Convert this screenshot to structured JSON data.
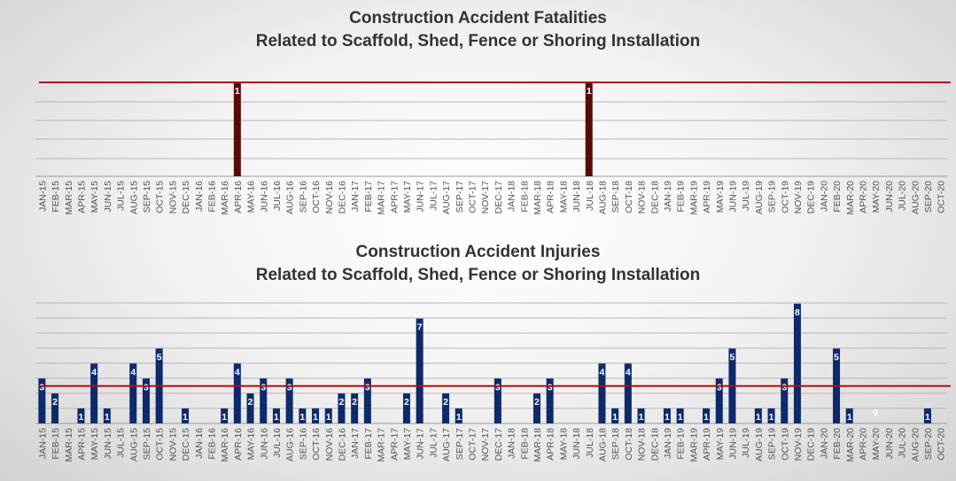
{
  "colors": {
    "fatality_bar": "#5a0a0a",
    "injury_bar": "#0d2a6b",
    "reference_line": "#b01010",
    "gridline": "#b5b5b5"
  },
  "chart_data": [
    {
      "type": "bar",
      "title_lines": [
        "Construction Accident Fatalities",
        "Related to Scaffold, Shed, Fence or Shoring Installation"
      ],
      "categories": [
        "JAN-15",
        "FEB-15",
        "MAR-15",
        "APR-15",
        "MAY-15",
        "JUN-15",
        "JUL-15",
        "AUG-15",
        "SEP-15",
        "OCT-15",
        "NOV-15",
        "DEC-15",
        "JAN-16",
        "FEB-16",
        "MAR-16",
        "APR-16",
        "MAY-16",
        "JUN-16",
        "JUL-16",
        "AUG-16",
        "SEP-16",
        "OCT-16",
        "NOV-16",
        "DEC-16",
        "JAN-17",
        "FEB-17",
        "MAR-17",
        "APR-17",
        "MAY-17",
        "JUN-17",
        "JUL-17",
        "AUG-17",
        "SEP-17",
        "OCT-17",
        "NOV-17",
        "DEC-17",
        "JAN-18",
        "FEB-18",
        "MAR-18",
        "APR-18",
        "MAY-18",
        "JUN-18",
        "JUL-18",
        "AUG-18",
        "SEP-18",
        "OCT-18",
        "NOV-18",
        "DEC-18",
        "JAN-19",
        "FEB-19",
        "MAR-19",
        "APR-19",
        "MAY-19",
        "JUN-19",
        "JUL-19",
        "AUG-19",
        "SEP-19",
        "OCT-19",
        "NOV-19",
        "DEC-19",
        "JAN-20",
        "FEB-20",
        "MAR-20",
        "APR-20",
        "MAY-20",
        "JUN-20",
        "JUL-20",
        "AUG-20",
        "SEP-20",
        "OCT-20"
      ],
      "values": [
        0,
        0,
        0,
        0,
        0,
        0,
        0,
        0,
        0,
        0,
        0,
        0,
        0,
        0,
        0,
        1,
        0,
        0,
        0,
        0,
        0,
        0,
        0,
        0,
        0,
        0,
        0,
        0,
        0,
        0,
        0,
        0,
        0,
        0,
        0,
        0,
        0,
        0,
        0,
        0,
        0,
        0,
        1,
        0,
        0,
        0,
        0,
        0,
        0,
        0,
        0,
        0,
        0,
        0,
        0,
        0,
        0,
        0,
        0,
        0,
        0,
        0,
        0,
        0,
        0,
        0,
        0,
        0,
        0,
        0
      ],
      "data_labels": [
        {
          "index": 15,
          "text": "1"
        },
        {
          "index": 42,
          "text": "1"
        }
      ],
      "reference_line": 1,
      "ylim": [
        0,
        1
      ],
      "grid": true,
      "legend": "none"
    },
    {
      "type": "bar",
      "title_lines": [
        "Construction Accident Injuries",
        "Related to Scaffold, Shed, Fence or Shoring Installation"
      ],
      "categories": [
        "JAN-15",
        "FEB-15",
        "MAR-15",
        "APR-15",
        "MAY-15",
        "JUN-15",
        "JUL-15",
        "AUG-15",
        "SEP-15",
        "OCT-15",
        "NOV-15",
        "DEC-15",
        "JAN-16",
        "FEB-16",
        "MAR-16",
        "APR-16",
        "MAY-16",
        "JUN-16",
        "JUL-16",
        "AUG-16",
        "SEP-16",
        "OCT-16",
        "NOV-16",
        "DEC-16",
        "JAN-17",
        "FEB-17",
        "MAR-17",
        "APR-17",
        "MAY-17",
        "JUN-17",
        "JUL-17",
        "AUG-17",
        "SEP-17",
        "OCT-17",
        "NOV-17",
        "DEC-17",
        "JAN-18",
        "FEB-18",
        "MAR-18",
        "APR-18",
        "MAY-18",
        "JUN-18",
        "JUL-18",
        "AUG-18",
        "SEP-18",
        "OCT-18",
        "NOV-18",
        "DEC-18",
        "JAN-19",
        "FEB-19",
        "MAR-19",
        "APR-19",
        "MAY-19",
        "JUN-19",
        "JUL-19",
        "AUG-19",
        "SEP-19",
        "OCT-19",
        "NOV-19",
        "DEC-19",
        "JAN-20",
        "FEB-20",
        "MAR-20",
        "APR-20",
        "MAY-20",
        "JUN-20",
        "JUL-20",
        "AUG-20",
        "SEP-20",
        "OCT-20"
      ],
      "values": [
        3,
        2,
        0,
        1,
        4,
        1,
        0,
        4,
        3,
        5,
        0,
        1,
        0,
        0,
        1,
        4,
        2,
        3,
        1,
        3,
        1,
        1,
        1,
        2,
        2,
        3,
        0,
        0,
        2,
        7,
        0,
        2,
        1,
        0,
        0,
        3,
        0,
        0,
        2,
        3,
        0,
        0,
        0,
        4,
        1,
        4,
        1,
        0,
        1,
        1,
        0,
        1,
        3,
        5,
        0,
        1,
        1,
        3,
        8,
        0,
        0,
        5,
        1,
        0,
        0,
        0,
        0,
        0,
        1,
        0
      ],
      "data_labels": [
        {
          "index": 0,
          "text": "3"
        },
        {
          "index": 1,
          "text": "2"
        },
        {
          "index": 3,
          "text": "1"
        },
        {
          "index": 4,
          "text": "4"
        },
        {
          "index": 5,
          "text": "1"
        },
        {
          "index": 7,
          "text": "4"
        },
        {
          "index": 8,
          "text": "3"
        },
        {
          "index": 9,
          "text": "5"
        },
        {
          "index": 11,
          "text": "1"
        },
        {
          "index": 14,
          "text": "1"
        },
        {
          "index": 15,
          "text": "4"
        },
        {
          "index": 16,
          "text": "2"
        },
        {
          "index": 17,
          "text": "3"
        },
        {
          "index": 18,
          "text": "1"
        },
        {
          "index": 19,
          "text": "3"
        },
        {
          "index": 20,
          "text": "1"
        },
        {
          "index": 21,
          "text": "1"
        },
        {
          "index": 22,
          "text": "1"
        },
        {
          "index": 23,
          "text": "2"
        },
        {
          "index": 24,
          "text": "2"
        },
        {
          "index": 25,
          "text": "3"
        },
        {
          "index": 28,
          "text": "2"
        },
        {
          "index": 29,
          "text": "7"
        },
        {
          "index": 31,
          "text": "2"
        },
        {
          "index": 32,
          "text": "1"
        },
        {
          "index": 35,
          "text": "3"
        },
        {
          "index": 38,
          "text": "2"
        },
        {
          "index": 39,
          "text": "3"
        },
        {
          "index": 43,
          "text": "4"
        },
        {
          "index": 44,
          "text": "1"
        },
        {
          "index": 45,
          "text": "4"
        },
        {
          "index": 46,
          "text": "1"
        },
        {
          "index": 48,
          "text": "1"
        },
        {
          "index": 49,
          "text": "1"
        },
        {
          "index": 51,
          "text": "1"
        },
        {
          "index": 52,
          "text": "3"
        },
        {
          "index": 53,
          "text": "5"
        },
        {
          "index": 55,
          "text": "1"
        },
        {
          "index": 56,
          "text": "1"
        },
        {
          "index": 57,
          "text": "3"
        },
        {
          "index": 58,
          "text": "8"
        },
        {
          "index": 61,
          "text": "5"
        },
        {
          "index": 62,
          "text": "1"
        },
        {
          "index": 64,
          "text": "0"
        },
        {
          "index": 68,
          "text": "1"
        }
      ],
      "reference_line": 2.5,
      "ylim": [
        0,
        8
      ],
      "grid": true,
      "legend": "none"
    }
  ]
}
